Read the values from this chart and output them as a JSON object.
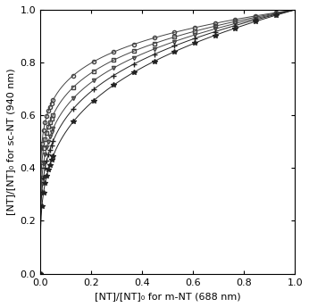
{
  "xlabel": "[NT]/[NT]₀ for m-NT (688 nm)",
  "ylabel": "[NT]/[NT]₀ for sc-NT (940 nm)",
  "xlim": [
    0,
    1
  ],
  "ylim": [
    0,
    1
  ],
  "xticks": [
    0,
    0.2,
    0.4,
    0.6,
    0.8,
    1
  ],
  "yticks": [
    0,
    0.2,
    0.4,
    0.6,
    0.8,
    1
  ],
  "series": [
    {
      "marker": "o",
      "markersize": 3,
      "color": "#444444",
      "fillstyle": "none",
      "params": {
        "alpha": 0.3
      }
    },
    {
      "marker": "s",
      "markersize": 3,
      "color": "#444444",
      "fillstyle": "none",
      "params": {
        "alpha": 0.33
      }
    },
    {
      "marker": "v",
      "markersize": 3,
      "color": "#444444",
      "fillstyle": "none",
      "params": {
        "alpha": 0.36
      }
    },
    {
      "marker": "+",
      "markersize": 4,
      "color": "#222222",
      "fillstyle": "full",
      "params": {
        "alpha": 0.4
      }
    },
    {
      "marker": "*",
      "markersize": 4,
      "color": "#222222",
      "fillstyle": "full",
      "params": {
        "alpha": 0.45
      }
    }
  ],
  "n_points": 500,
  "n_dense": 400,
  "background_color": "#ffffff",
  "linewidth": 0.7,
  "xlabel_fontsize": 8,
  "ylabel_fontsize": 8,
  "tick_fontsize": 8
}
